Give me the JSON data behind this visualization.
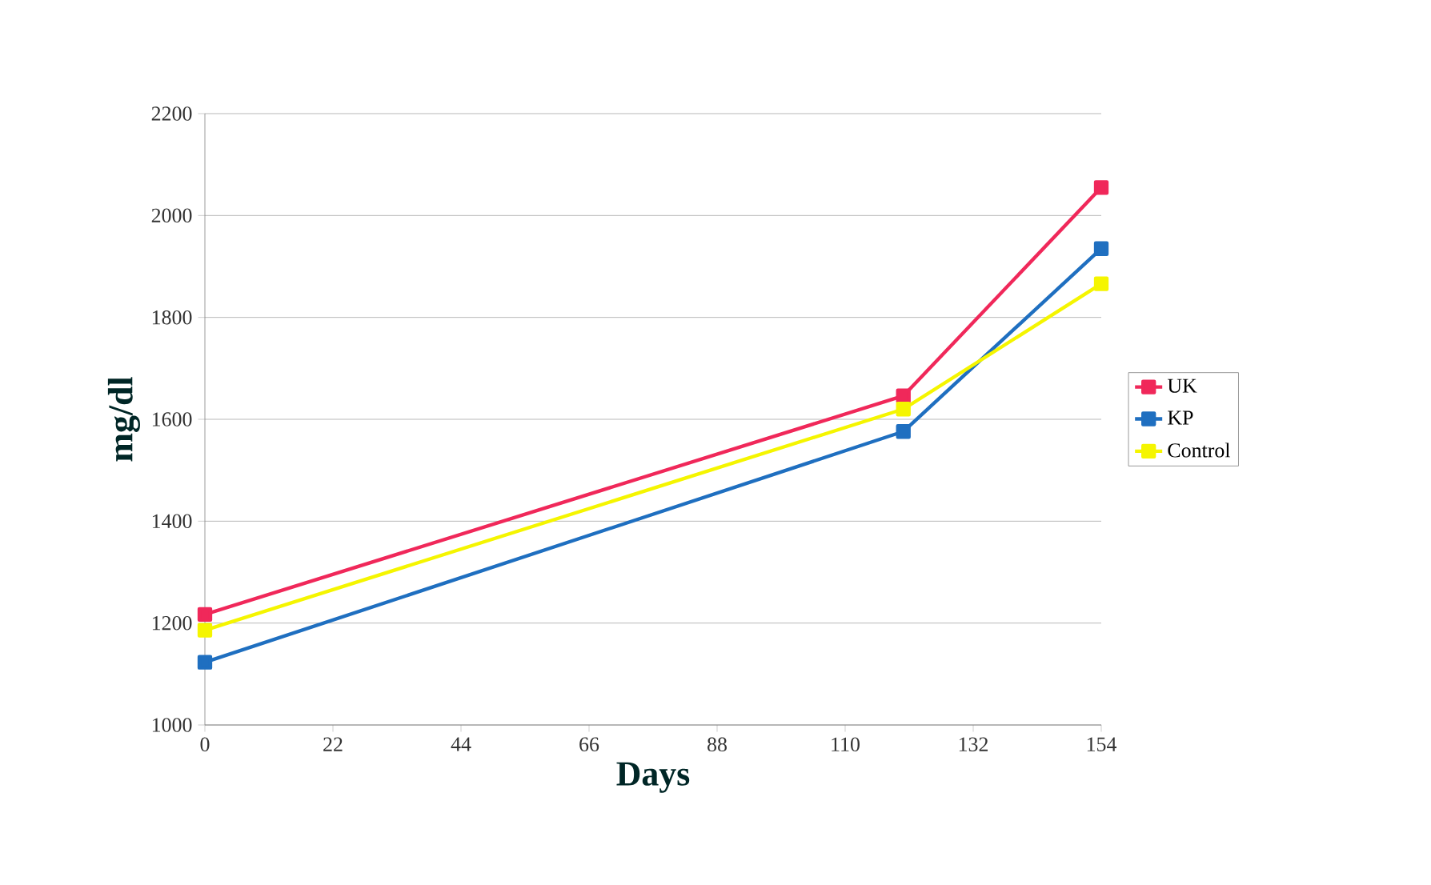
{
  "chart_data": {
    "type": "line",
    "xlabel": "Days",
    "ylabel": "mg/dl",
    "x": [
      0,
      120,
      154
    ],
    "series": [
      {
        "name": "UK",
        "color": "#f0285a",
        "values": [
          1217,
          1646,
          2055
        ]
      },
      {
        "name": "KP",
        "color": "#1f6fc0",
        "values": [
          1123,
          1576,
          1935
        ]
      },
      {
        "name": "Control",
        "color": "#f5f500",
        "values": [
          1186,
          1620,
          1866
        ]
      }
    ],
    "xlim": [
      0,
      154
    ],
    "xticks": [
      0,
      22,
      44,
      66,
      88,
      110,
      132,
      154
    ],
    "ylim": [
      1000,
      2200
    ],
    "yticks": [
      1000,
      1200,
      1400,
      1600,
      1800,
      2000,
      2200
    ],
    "grid": "y",
    "legend": "right",
    "marker": "square",
    "line_style": "solid"
  }
}
